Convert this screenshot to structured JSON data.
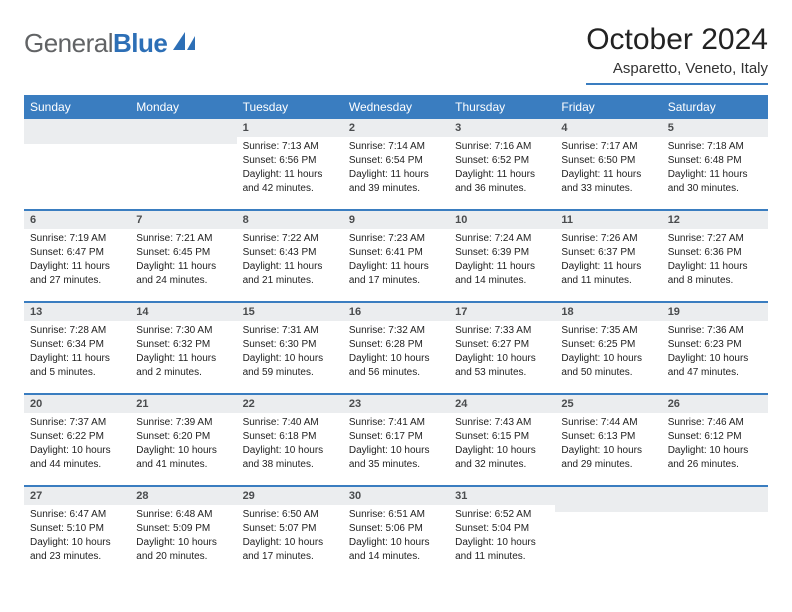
{
  "brand": {
    "part1": "General",
    "part2": "Blue"
  },
  "title": "October 2024",
  "location": "Asparetto, Veneto, Italy",
  "colors": {
    "header_bg": "#3a7dc0",
    "header_text": "#ffffff",
    "daynum_bg": "#ebedef",
    "daynum_text": "#4a4c4e",
    "border": "#3a7dc0",
    "brand_gray": "#616365",
    "brand_blue": "#2d6fb6"
  },
  "weekdays": [
    "Sunday",
    "Monday",
    "Tuesday",
    "Wednesday",
    "Thursday",
    "Friday",
    "Saturday"
  ],
  "weeks": [
    [
      {
        "num": "",
        "sunrise": "",
        "sunset": "",
        "daylight": ""
      },
      {
        "num": "",
        "sunrise": "",
        "sunset": "",
        "daylight": ""
      },
      {
        "num": "1",
        "sunrise": "Sunrise: 7:13 AM",
        "sunset": "Sunset: 6:56 PM",
        "daylight": "Daylight: 11 hours and 42 minutes."
      },
      {
        "num": "2",
        "sunrise": "Sunrise: 7:14 AM",
        "sunset": "Sunset: 6:54 PM",
        "daylight": "Daylight: 11 hours and 39 minutes."
      },
      {
        "num": "3",
        "sunrise": "Sunrise: 7:16 AM",
        "sunset": "Sunset: 6:52 PM",
        "daylight": "Daylight: 11 hours and 36 minutes."
      },
      {
        "num": "4",
        "sunrise": "Sunrise: 7:17 AM",
        "sunset": "Sunset: 6:50 PM",
        "daylight": "Daylight: 11 hours and 33 minutes."
      },
      {
        "num": "5",
        "sunrise": "Sunrise: 7:18 AM",
        "sunset": "Sunset: 6:48 PM",
        "daylight": "Daylight: 11 hours and 30 minutes."
      }
    ],
    [
      {
        "num": "6",
        "sunrise": "Sunrise: 7:19 AM",
        "sunset": "Sunset: 6:47 PM",
        "daylight": "Daylight: 11 hours and 27 minutes."
      },
      {
        "num": "7",
        "sunrise": "Sunrise: 7:21 AM",
        "sunset": "Sunset: 6:45 PM",
        "daylight": "Daylight: 11 hours and 24 minutes."
      },
      {
        "num": "8",
        "sunrise": "Sunrise: 7:22 AM",
        "sunset": "Sunset: 6:43 PM",
        "daylight": "Daylight: 11 hours and 21 minutes."
      },
      {
        "num": "9",
        "sunrise": "Sunrise: 7:23 AM",
        "sunset": "Sunset: 6:41 PM",
        "daylight": "Daylight: 11 hours and 17 minutes."
      },
      {
        "num": "10",
        "sunrise": "Sunrise: 7:24 AM",
        "sunset": "Sunset: 6:39 PM",
        "daylight": "Daylight: 11 hours and 14 minutes."
      },
      {
        "num": "11",
        "sunrise": "Sunrise: 7:26 AM",
        "sunset": "Sunset: 6:37 PM",
        "daylight": "Daylight: 11 hours and 11 minutes."
      },
      {
        "num": "12",
        "sunrise": "Sunrise: 7:27 AM",
        "sunset": "Sunset: 6:36 PM",
        "daylight": "Daylight: 11 hours and 8 minutes."
      }
    ],
    [
      {
        "num": "13",
        "sunrise": "Sunrise: 7:28 AM",
        "sunset": "Sunset: 6:34 PM",
        "daylight": "Daylight: 11 hours and 5 minutes."
      },
      {
        "num": "14",
        "sunrise": "Sunrise: 7:30 AM",
        "sunset": "Sunset: 6:32 PM",
        "daylight": "Daylight: 11 hours and 2 minutes."
      },
      {
        "num": "15",
        "sunrise": "Sunrise: 7:31 AM",
        "sunset": "Sunset: 6:30 PM",
        "daylight": "Daylight: 10 hours and 59 minutes."
      },
      {
        "num": "16",
        "sunrise": "Sunrise: 7:32 AM",
        "sunset": "Sunset: 6:28 PM",
        "daylight": "Daylight: 10 hours and 56 minutes."
      },
      {
        "num": "17",
        "sunrise": "Sunrise: 7:33 AM",
        "sunset": "Sunset: 6:27 PM",
        "daylight": "Daylight: 10 hours and 53 minutes."
      },
      {
        "num": "18",
        "sunrise": "Sunrise: 7:35 AM",
        "sunset": "Sunset: 6:25 PM",
        "daylight": "Daylight: 10 hours and 50 minutes."
      },
      {
        "num": "19",
        "sunrise": "Sunrise: 7:36 AM",
        "sunset": "Sunset: 6:23 PM",
        "daylight": "Daylight: 10 hours and 47 minutes."
      }
    ],
    [
      {
        "num": "20",
        "sunrise": "Sunrise: 7:37 AM",
        "sunset": "Sunset: 6:22 PM",
        "daylight": "Daylight: 10 hours and 44 minutes."
      },
      {
        "num": "21",
        "sunrise": "Sunrise: 7:39 AM",
        "sunset": "Sunset: 6:20 PM",
        "daylight": "Daylight: 10 hours and 41 minutes."
      },
      {
        "num": "22",
        "sunrise": "Sunrise: 7:40 AM",
        "sunset": "Sunset: 6:18 PM",
        "daylight": "Daylight: 10 hours and 38 minutes."
      },
      {
        "num": "23",
        "sunrise": "Sunrise: 7:41 AM",
        "sunset": "Sunset: 6:17 PM",
        "daylight": "Daylight: 10 hours and 35 minutes."
      },
      {
        "num": "24",
        "sunrise": "Sunrise: 7:43 AM",
        "sunset": "Sunset: 6:15 PM",
        "daylight": "Daylight: 10 hours and 32 minutes."
      },
      {
        "num": "25",
        "sunrise": "Sunrise: 7:44 AM",
        "sunset": "Sunset: 6:13 PM",
        "daylight": "Daylight: 10 hours and 29 minutes."
      },
      {
        "num": "26",
        "sunrise": "Sunrise: 7:46 AM",
        "sunset": "Sunset: 6:12 PM",
        "daylight": "Daylight: 10 hours and 26 minutes."
      }
    ],
    [
      {
        "num": "27",
        "sunrise": "Sunrise: 6:47 AM",
        "sunset": "Sunset: 5:10 PM",
        "daylight": "Daylight: 10 hours and 23 minutes."
      },
      {
        "num": "28",
        "sunrise": "Sunrise: 6:48 AM",
        "sunset": "Sunset: 5:09 PM",
        "daylight": "Daylight: 10 hours and 20 minutes."
      },
      {
        "num": "29",
        "sunrise": "Sunrise: 6:50 AM",
        "sunset": "Sunset: 5:07 PM",
        "daylight": "Daylight: 10 hours and 17 minutes."
      },
      {
        "num": "30",
        "sunrise": "Sunrise: 6:51 AM",
        "sunset": "Sunset: 5:06 PM",
        "daylight": "Daylight: 10 hours and 14 minutes."
      },
      {
        "num": "31",
        "sunrise": "Sunrise: 6:52 AM",
        "sunset": "Sunset: 5:04 PM",
        "daylight": "Daylight: 10 hours and 11 minutes."
      },
      {
        "num": "",
        "sunrise": "",
        "sunset": "",
        "daylight": ""
      },
      {
        "num": "",
        "sunrise": "",
        "sunset": "",
        "daylight": ""
      }
    ]
  ]
}
